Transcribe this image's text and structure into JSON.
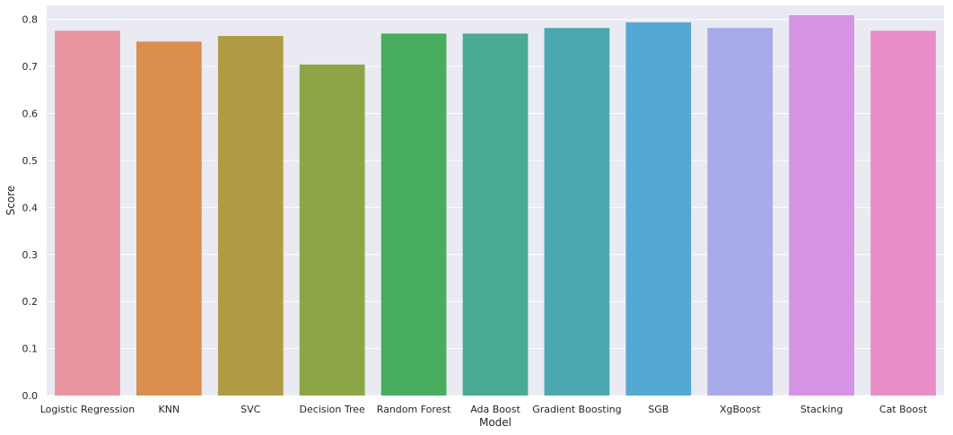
{
  "chart_data": {
    "type": "bar",
    "title": "",
    "xlabel": "Model",
    "ylabel": "Score",
    "ylim": [
      0,
      0.83
    ],
    "yticks": [
      "0.0",
      "0.1",
      "0.2",
      "0.3",
      "0.4",
      "0.5",
      "0.6",
      "0.7",
      "0.8"
    ],
    "grid": true,
    "background": "#EAEAF2",
    "categories": [
      "Logistic Regression",
      "KNN",
      "SVC",
      "Decision Tree",
      "Random Forest",
      "Ada Boost",
      "Gradient Boosting",
      "SGB",
      "XgBoost",
      "Stacking",
      "Cat Boost"
    ],
    "values": [
      0.776,
      0.753,
      0.765,
      0.704,
      0.77,
      0.77,
      0.782,
      0.794,
      0.782,
      0.809,
      0.776
    ],
    "colors": [
      "#E8959F",
      "#DB8F4E",
      "#B09B45",
      "#8CA647",
      "#49AD5F",
      "#4AAB94",
      "#4CA8B0",
      "#53A9D1",
      "#A7ABE9",
      "#D593E6",
      "#E88EC7"
    ]
  }
}
